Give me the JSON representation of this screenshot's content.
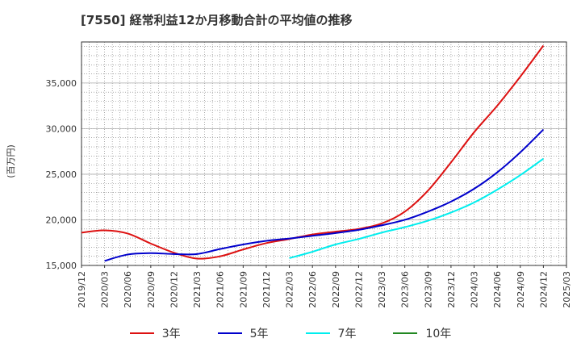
{
  "chart_data": {
    "type": "line",
    "title": "[7550]  経常利益12か月移動合計の平均値の推移",
    "ylabel": "(百万円)",
    "xlabel": "",
    "ylim": [
      15000,
      39500
    ],
    "xlim": [
      "2019-12",
      "2025-03"
    ],
    "grid": true,
    "legend_position": "bottom",
    "x_ticks": [
      "2019/12",
      "2020/03",
      "2020/06",
      "2020/09",
      "2020/12",
      "2021/03",
      "2021/06",
      "2021/09",
      "2021/12",
      "2022/03",
      "2022/06",
      "2022/09",
      "2022/12",
      "2023/03",
      "2023/06",
      "2023/09",
      "2023/12",
      "2024/03",
      "2024/06",
      "2024/09",
      "2024/12",
      "2025/03"
    ],
    "y_ticks": [
      15000,
      20000,
      25000,
      30000,
      35000
    ],
    "y_tick_labels": [
      "15,000",
      "20,000",
      "25,000",
      "30,000",
      "35,000"
    ],
    "series": [
      {
        "name": "3年",
        "color": "#dd1111",
        "points": [
          [
            "2019-12",
            18600
          ],
          [
            "2020-03",
            18850
          ],
          [
            "2020-06",
            18500
          ],
          [
            "2020-09",
            17400
          ],
          [
            "2020-12",
            16400
          ],
          [
            "2021-03",
            15750
          ],
          [
            "2021-06",
            16000
          ],
          [
            "2021-09",
            16750
          ],
          [
            "2021-12",
            17450
          ],
          [
            "2022-03",
            17900
          ],
          [
            "2022-06",
            18400
          ],
          [
            "2022-09",
            18700
          ],
          [
            "2022-12",
            19000
          ],
          [
            "2023-03",
            19600
          ],
          [
            "2023-06",
            20900
          ],
          [
            "2023-09",
            23200
          ],
          [
            "2023-12",
            26300
          ],
          [
            "2024-03",
            29600
          ],
          [
            "2024-06",
            32500
          ],
          [
            "2024-09",
            35700
          ],
          [
            "2024-12",
            39100
          ]
        ]
      },
      {
        "name": "5年",
        "color": "#0000cc",
        "points": [
          [
            "2020-03",
            15500
          ],
          [
            "2020-06",
            16200
          ],
          [
            "2020-09",
            16350
          ],
          [
            "2020-12",
            16250
          ],
          [
            "2021-03",
            16250
          ],
          [
            "2021-06",
            16800
          ],
          [
            "2021-09",
            17300
          ],
          [
            "2021-12",
            17700
          ],
          [
            "2022-03",
            17950
          ],
          [
            "2022-06",
            18250
          ],
          [
            "2022-09",
            18550
          ],
          [
            "2022-12",
            18900
          ],
          [
            "2023-03",
            19400
          ],
          [
            "2023-06",
            20000
          ],
          [
            "2023-09",
            20900
          ],
          [
            "2023-12",
            22000
          ],
          [
            "2024-03",
            23400
          ],
          [
            "2024-06",
            25200
          ],
          [
            "2024-09",
            27400
          ],
          [
            "2024-12",
            29900
          ]
        ]
      },
      {
        "name": "7年",
        "color": "#00eeee",
        "points": [
          [
            "2022-03",
            15800
          ],
          [
            "2022-06",
            16500
          ],
          [
            "2022-09",
            17300
          ],
          [
            "2022-12",
            17900
          ],
          [
            "2023-03",
            18600
          ],
          [
            "2023-06",
            19200
          ],
          [
            "2023-09",
            19900
          ],
          [
            "2023-12",
            20800
          ],
          [
            "2024-03",
            21900
          ],
          [
            "2024-06",
            23300
          ],
          [
            "2024-09",
            24900
          ],
          [
            "2024-12",
            26700
          ]
        ]
      },
      {
        "name": "10年",
        "color": "#228822",
        "points": []
      }
    ]
  }
}
